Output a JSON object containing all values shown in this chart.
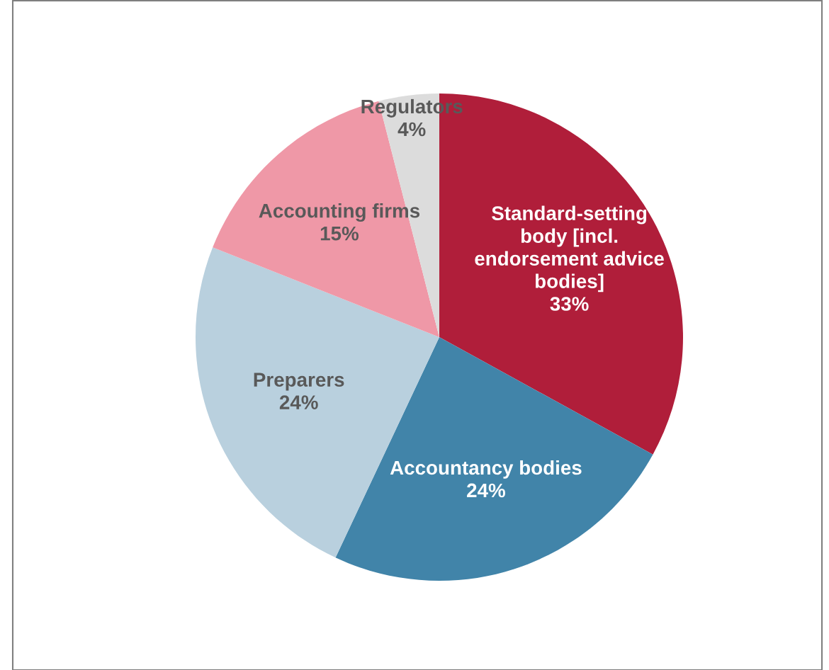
{
  "chart_data": {
    "type": "pie",
    "categories": [
      "Standard-setting\nbody [incl.\nendorsement advice\nbodies]",
      "Accountancy bodies",
      "Preparers",
      "Accounting firms",
      "Regulators"
    ],
    "values": [
      33,
      24,
      24,
      15,
      4
    ],
    "colors": [
      "#b01e3a",
      "#4184a9",
      "#b9d0de",
      "#ef98a7",
      "#dcdcdc"
    ],
    "value_labels": [
      "33%",
      "24%",
      "24%",
      "15%",
      "4%"
    ]
  }
}
